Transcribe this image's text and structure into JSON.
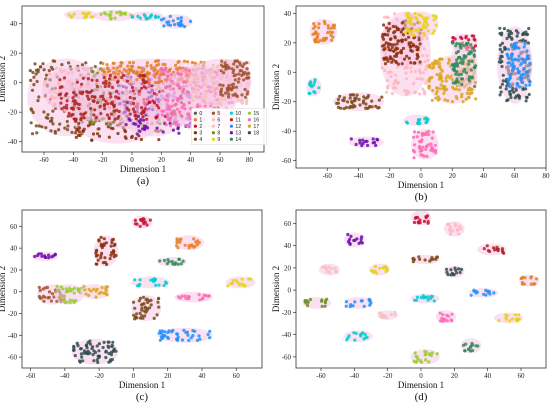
{
  "palette": [
    "#5a5a5a",
    "#e67e22",
    "#c8102e",
    "#8b2f0a",
    "#7a4a1a",
    "#a0522d",
    "#ffb6c1",
    "#f4c2c2",
    "#6b8e23",
    "#e6d31a",
    "#00ced1",
    "#b22222",
    "#1e90ff",
    "#6a0dad",
    "#2e8b57",
    "#9acd32",
    "#ff69b4",
    "#daa520",
    "#2f4f4f"
  ],
  "chart_data": [
    {
      "panel": "a",
      "type": "scatter",
      "caption": "(a)",
      "xlabel": "Dimension 1",
      "ylabel": "Dimension 2",
      "xlim": [
        -75,
        90
      ],
      "ylim": [
        -47,
        52
      ],
      "xticks": [
        -60,
        -40,
        -20,
        0,
        20,
        40,
        60,
        80
      ],
      "yticks": [
        -40,
        -20,
        0,
        20,
        40
      ],
      "legend": {
        "placement": "lower-right",
        "entries": [
          "0",
          "1",
          "2",
          "3",
          "4",
          "5",
          "6",
          "7",
          "8",
          "9",
          "10",
          "11",
          "12",
          "13",
          "14",
          "15",
          "16",
          "17",
          "18"
        ]
      },
      "clusters": [
        {
          "class": 9,
          "x": [
            -45,
            -25
          ],
          "y": [
            44,
            48
          ]
        },
        {
          "class": 15,
          "x": [
            -25,
            0
          ],
          "y": [
            43,
            48
          ]
        },
        {
          "class": 10,
          "x": [
            0,
            20
          ],
          "y": [
            43,
            47
          ]
        },
        {
          "class": 12,
          "x": [
            20,
            40
          ],
          "y": [
            38,
            45
          ]
        },
        {
          "class": 4,
          "x": [
            -70,
            -20
          ],
          "y": [
            -35,
            15
          ]
        },
        {
          "class": 6,
          "x": [
            -60,
            -10
          ],
          "y": [
            -20,
            10
          ]
        },
        {
          "class": 3,
          "x": [
            -40,
            20
          ],
          "y": [
            -40,
            -5
          ]
        },
        {
          "class": 8,
          "x": [
            -30,
            30
          ],
          "y": [
            -30,
            10
          ]
        },
        {
          "class": 13,
          "x": [
            -10,
            40
          ],
          "y": [
            -35,
            5
          ]
        },
        {
          "class": 2,
          "x": [
            0,
            60
          ],
          "y": [
            -25,
            10
          ]
        },
        {
          "class": 1,
          "x": [
            -20,
            50
          ],
          "y": [
            0,
            15
          ]
        },
        {
          "class": 16,
          "x": [
            20,
            70
          ],
          "y": [
            -30,
            10
          ]
        },
        {
          "class": 7,
          "x": [
            40,
            80
          ],
          "y": [
            -15,
            15
          ]
        },
        {
          "class": 11,
          "x": [
            -50,
            10
          ],
          "y": [
            -25,
            5
          ]
        },
        {
          "class": 5,
          "x": [
            60,
            80
          ],
          "y": [
            -10,
            15
          ]
        }
      ]
    },
    {
      "panel": "b",
      "type": "scatter",
      "caption": "(b)",
      "xlabel": "Dimension 1",
      "ylabel": "Dimension 2",
      "xlim": [
        -80,
        80
      ],
      "ylim": [
        -65,
        45
      ],
      "xticks": [
        -60,
        -40,
        -20,
        0,
        20,
        40,
        60,
        80
      ],
      "yticks": [
        -60,
        -40,
        -20,
        0,
        20,
        40
      ],
      "clusters": [
        {
          "class": 1,
          "x": [
            -70,
            -55
          ],
          "y": [
            20,
            35
          ]
        },
        {
          "class": 10,
          "x": [
            -72,
            -65
          ],
          "y": [
            -15,
            -5
          ]
        },
        {
          "class": 4,
          "x": [
            -55,
            -25
          ],
          "y": [
            -25,
            -15
          ]
        },
        {
          "class": 6,
          "x": [
            -25,
            5
          ],
          "y": [
            -15,
            40
          ]
        },
        {
          "class": 3,
          "x": [
            -25,
            0
          ],
          "y": [
            5,
            35
          ]
        },
        {
          "class": 9,
          "x": [
            -10,
            10
          ],
          "y": [
            25,
            40
          ]
        },
        {
          "class": 2,
          "x": [
            20,
            35
          ],
          "y": [
            15,
            25
          ]
        },
        {
          "class": 17,
          "x": [
            5,
            35
          ],
          "y": [
            -20,
            10
          ]
        },
        {
          "class": 14,
          "x": [
            20,
            35
          ],
          "y": [
            -10,
            20
          ]
        },
        {
          "class": 18,
          "x": [
            50,
            70
          ],
          "y": [
            -20,
            30
          ]
        },
        {
          "class": 12,
          "x": [
            55,
            70
          ],
          "y": [
            -10,
            20
          ]
        },
        {
          "class": 13,
          "x": [
            -45,
            -25
          ],
          "y": [
            -50,
            -45
          ]
        },
        {
          "class": 10,
          "x": [
            -10,
            5
          ],
          "y": [
            -35,
            -30
          ]
        },
        {
          "class": 16,
          "x": [
            -5,
            10
          ],
          "y": [
            -58,
            -40
          ]
        }
      ]
    },
    {
      "panel": "c",
      "type": "scatter",
      "caption": "(c)",
      "xlabel": "Dimension 1",
      "ylabel": "Dimension 2",
      "xlim": [
        -65,
        75
      ],
      "ylim": [
        -70,
        75
      ],
      "xticks": [
        -60,
        -40,
        -20,
        0,
        20,
        40,
        60
      ],
      "yticks": [
        -60,
        -40,
        -20,
        0,
        20,
        40,
        60
      ],
      "clusters": [
        {
          "class": 2,
          "x": [
            0,
            10
          ],
          "y": [
            60,
            68
          ]
        },
        {
          "class": 13,
          "x": [
            -58,
            -45
          ],
          "y": [
            30,
            35
          ]
        },
        {
          "class": 3,
          "x": [
            -22,
            -10
          ],
          "y": [
            25,
            50
          ]
        },
        {
          "class": 1,
          "x": [
            25,
            40
          ],
          "y": [
            40,
            50
          ]
        },
        {
          "class": 14,
          "x": [
            15,
            30
          ],
          "y": [
            25,
            30
          ]
        },
        {
          "class": 9,
          "x": [
            55,
            70
          ],
          "y": [
            5,
            12
          ]
        },
        {
          "class": 10,
          "x": [
            0,
            20
          ],
          "y": [
            5,
            12
          ]
        },
        {
          "class": 5,
          "x": [
            -55,
            -40
          ],
          "y": [
            -10,
            5
          ]
        },
        {
          "class": 15,
          "x": [
            -45,
            -30
          ],
          "y": [
            -10,
            5
          ]
        },
        {
          "class": 17,
          "x": [
            -30,
            -15
          ],
          "y": [
            -5,
            5
          ]
        },
        {
          "class": 16,
          "x": [
            25,
            45
          ],
          "y": [
            -8,
            -2
          ]
        },
        {
          "class": 4,
          "x": [
            0,
            15
          ],
          "y": [
            -25,
            -5
          ]
        },
        {
          "class": 12,
          "x": [
            15,
            45
          ],
          "y": [
            -45,
            -35
          ]
        },
        {
          "class": 18,
          "x": [
            -35,
            -10
          ],
          "y": [
            -65,
            -45
          ]
        }
      ]
    },
    {
      "panel": "d",
      "type": "scatter",
      "caption": "(d)",
      "xlabel": "Dimension 1",
      "ylabel": "Dimension 2",
      "xlim": [
        -75,
        75
      ],
      "ylim": [
        -70,
        72
      ],
      "xticks": [
        -60,
        -40,
        -20,
        0,
        20,
        40,
        60
      ],
      "yticks": [
        -60,
        -40,
        -20,
        0,
        20,
        40,
        60
      ],
      "clusters": [
        {
          "class": 2,
          "x": [
            -5,
            5
          ],
          "y": [
            60,
            70
          ]
        },
        {
          "class": 6,
          "x": [
            15,
            25
          ],
          "y": [
            50,
            60
          ]
        },
        {
          "class": 13,
          "x": [
            -45,
            -35
          ],
          "y": [
            40,
            50
          ]
        },
        {
          "class": 11,
          "x": [
            35,
            50
          ],
          "y": [
            33,
            40
          ]
        },
        {
          "class": 7,
          "x": [
            -60,
            -50
          ],
          "y": [
            15,
            22
          ]
        },
        {
          "class": 9,
          "x": [
            -30,
            -20
          ],
          "y": [
            15,
            22
          ]
        },
        {
          "class": 4,
          "x": [
            -5,
            10
          ],
          "y": [
            25,
            30
          ]
        },
        {
          "class": 18,
          "x": [
            15,
            25
          ],
          "y": [
            13,
            20
          ]
        },
        {
          "class": 1,
          "x": [
            60,
            70
          ],
          "y": [
            5,
            12
          ]
        },
        {
          "class": 8,
          "x": [
            -70,
            -55
          ],
          "y": [
            -15,
            -8
          ]
        },
        {
          "class": 12,
          "x": [
            -45,
            -30
          ],
          "y": [
            -15,
            -8
          ]
        },
        {
          "class": 10,
          "x": [
            -5,
            10
          ],
          "y": [
            -10,
            -5
          ]
        },
        {
          "class": 12,
          "x": [
            30,
            45
          ],
          "y": [
            -5,
            0
          ]
        },
        {
          "class": 7,
          "x": [
            -25,
            -15
          ],
          "y": [
            -25,
            -20
          ]
        },
        {
          "class": 16,
          "x": [
            10,
            20
          ],
          "y": [
            -28,
            -20
          ]
        },
        {
          "class": 9,
          "x": [
            45,
            60
          ],
          "y": [
            -28,
            -22
          ]
        },
        {
          "class": 10,
          "x": [
            -45,
            -30
          ],
          "y": [
            -45,
            -38
          ]
        },
        {
          "class": 14,
          "x": [
            25,
            35
          ],
          "y": [
            -55,
            -45
          ]
        },
        {
          "class": 15,
          "x": [
            -5,
            10
          ],
          "y": [
            -65,
            -55
          ]
        }
      ]
    }
  ]
}
